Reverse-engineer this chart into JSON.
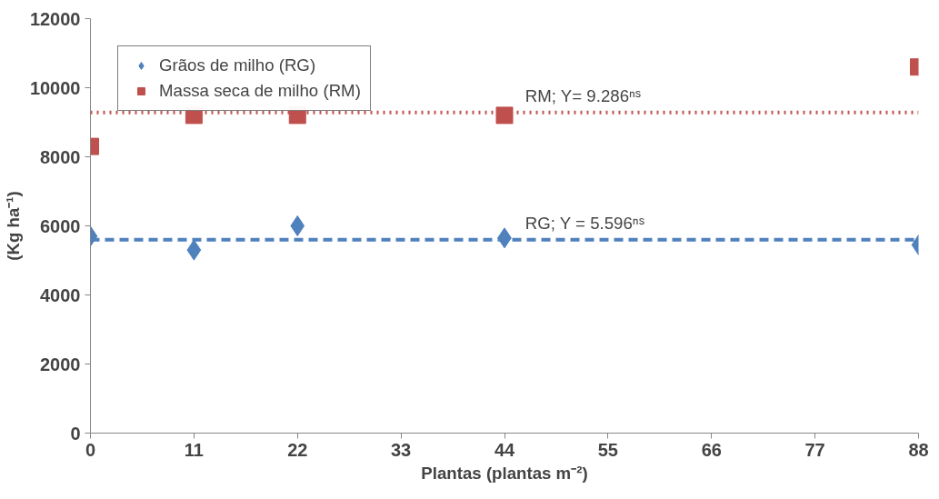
{
  "chart_data": {
    "type": "scatter",
    "xlabel": "Plantas (plantas m⁻²)",
    "ylabel": "(Kg ha⁻¹)",
    "x": [
      0,
      11,
      22,
      44,
      88
    ],
    "series": [
      {
        "name": "Grãos de milho (RG)",
        "color": "#4f81bd",
        "marker": "diamond",
        "values": [
          5700,
          5300,
          6000,
          5650,
          5450
        ]
      },
      {
        "name": "Massa seca de milho (RM)",
        "color": "#c0504d",
        "marker": "square",
        "values": [
          8300,
          9200,
          9200,
          9200,
          10600
        ]
      }
    ],
    "ref_lines": [
      {
        "axis": "y",
        "value": 5596,
        "label": "RG; Y = 5.596ⁿˢ",
        "color": "#4f81bd",
        "line_style": "dashed"
      },
      {
        "axis": "y",
        "value": 9286,
        "label": "RM; Y= 9.286ⁿˢ",
        "color": "#c0504d",
        "line_style": "dotted"
      }
    ],
    "xlim": [
      0,
      88
    ],
    "xticks": [
      0,
      11,
      22,
      33,
      44,
      55,
      66,
      77,
      88
    ],
    "ylim": [
      0,
      12000
    ],
    "yticks": [
      0,
      2000,
      4000,
      6000,
      8000,
      10000,
      12000
    ],
    "grid": false,
    "legend": "top left"
  }
}
